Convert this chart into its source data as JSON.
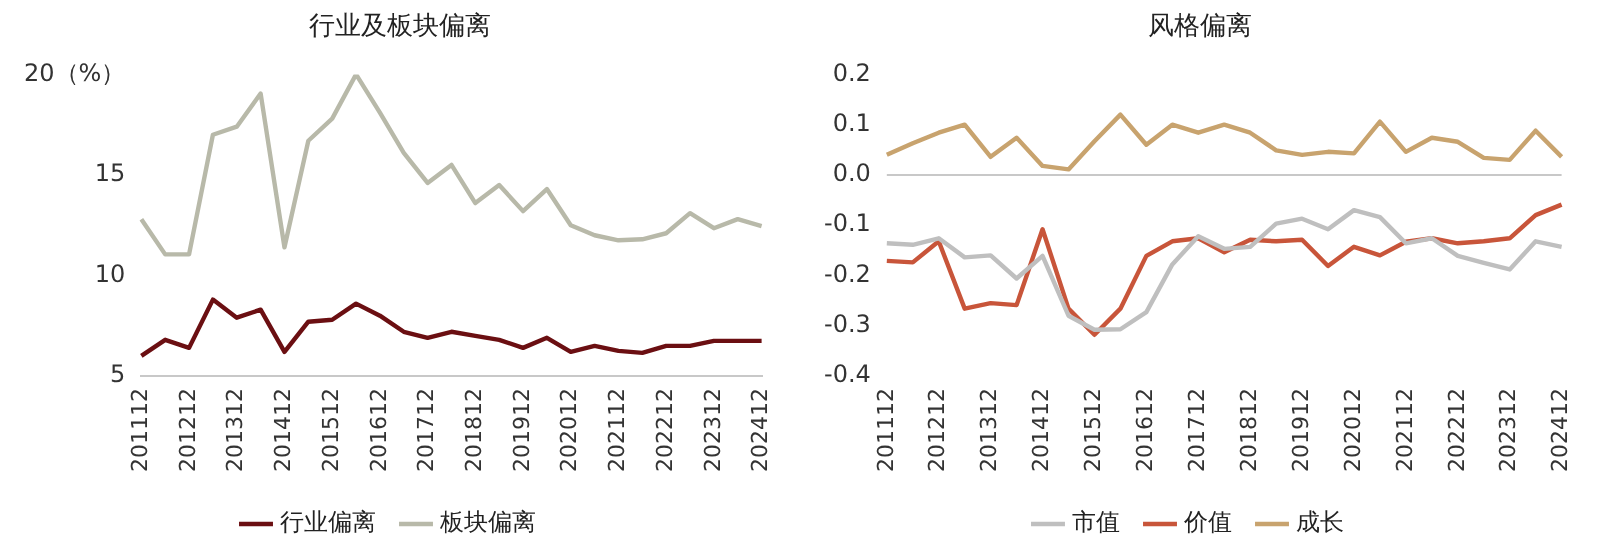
{
  "chart_data": [
    {
      "type": "line",
      "title": "行业及板块偏离",
      "categories": [
        "201112",
        null,
        "201212",
        null,
        "201312",
        null,
        "201412",
        null,
        "201512",
        null,
        "201612",
        null,
        "201712",
        null,
        "201812",
        null,
        "201912",
        null,
        "202012",
        null,
        "202112",
        null,
        "202212",
        null,
        "202312",
        null,
        "202412"
      ],
      "series": [
        {
          "name": "行业偏离",
          "color": "#6b0f12",
          "values": [
            6.0,
            6.8,
            6.4,
            8.8,
            7.9,
            8.3,
            6.2,
            7.7,
            7.8,
            8.6,
            8.0,
            7.2,
            6.9,
            7.2,
            7.0,
            6.8,
            6.4,
            6.9,
            6.2,
            6.5,
            6.25,
            6.15,
            6.5,
            6.5,
            6.75,
            6.75,
            6.75
          ]
        },
        {
          "name": "板块偏离",
          "color": "#b8b9a9",
          "values": [
            12.8,
            11.05,
            11.05,
            17.0,
            17.4,
            19.05,
            11.4,
            16.7,
            17.8,
            20.0,
            18.1,
            16.1,
            14.6,
            15.5,
            13.6,
            14.5,
            13.2,
            14.3,
            12.5,
            12.0,
            11.75,
            11.8,
            12.1,
            13.1,
            12.35,
            12.8,
            12.45
          ]
        }
      ],
      "ylim": [
        5,
        20
      ],
      "yticks": [
        5,
        10,
        15,
        {
          "value": 20,
          "label": "20（%）"
        }
      ],
      "grid": false,
      "legend": "bottom",
      "marker": "none"
    },
    {
      "type": "line",
      "title": "风格偏离",
      "categories": [
        "201112",
        null,
        "201212",
        null,
        "201312",
        null,
        "201412",
        null,
        "201512",
        null,
        "201612",
        null,
        "201712",
        null,
        "201812",
        null,
        "201912",
        null,
        "202012",
        null,
        "202112",
        null,
        "202212",
        null,
        "202312",
        null,
        "202412"
      ],
      "series": [
        {
          "name": "市值",
          "color": "#bfbfbf",
          "values": [
            -0.136,
            -0.139,
            -0.126,
            -0.164,
            -0.16,
            -0.206,
            -0.161,
            -0.28,
            -0.308,
            -0.307,
            -0.273,
            -0.178,
            -0.122,
            -0.147,
            -0.143,
            -0.097,
            -0.087,
            -0.108,
            -0.07,
            -0.084,
            -0.136,
            -0.126,
            -0.161,
            -0.175,
            -0.188,
            -0.132,
            -0.143
          ]
        },
        {
          "name": "价值",
          "color": "#c8553a",
          "values": [
            -0.171,
            -0.174,
            -0.132,
            -0.266,
            -0.255,
            -0.259,
            -0.108,
            -0.266,
            -0.318,
            -0.266,
            -0.161,
            -0.132,
            -0.126,
            -0.154,
            -0.129,
            -0.132,
            -0.129,
            -0.181,
            -0.143,
            -0.16,
            -0.133,
            -0.126,
            -0.136,
            -0.132,
            -0.126,
            -0.08,
            -0.059
          ]
        },
        {
          "name": "成长",
          "color": "#c8a36e",
          "values": [
            0.04,
            0.063,
            0.084,
            0.1,
            0.036,
            0.074,
            0.018,
            0.011,
            0.067,
            0.12,
            0.06,
            0.1,
            0.084,
            0.1,
            0.084,
            0.049,
            0.04,
            0.046,
            0.043,
            0.106,
            0.046,
            0.074,
            0.066,
            0.034,
            0.03,
            0.088,
            0.036
          ]
        }
      ],
      "ylim": [
        -0.4,
        0.2
      ],
      "yticks": [
        {
          "value": -0.4,
          "label": "-0.4"
        },
        {
          "value": -0.3,
          "label": "-0.3"
        },
        {
          "value": -0.2,
          "label": "-0.2"
        },
        {
          "value": -0.1,
          "label": "-0.1"
        },
        {
          "value": 0,
          "label": "0.0"
        },
        {
          "value": 0.1,
          "label": "0.1"
        },
        {
          "value": 0.2,
          "label": "0.2"
        }
      ],
      "ref_lines": [
        {
          "axis": "y",
          "value": 0,
          "color": "#c8c8c8"
        }
      ],
      "grid": false,
      "legend": "bottom",
      "marker": "none"
    }
  ]
}
